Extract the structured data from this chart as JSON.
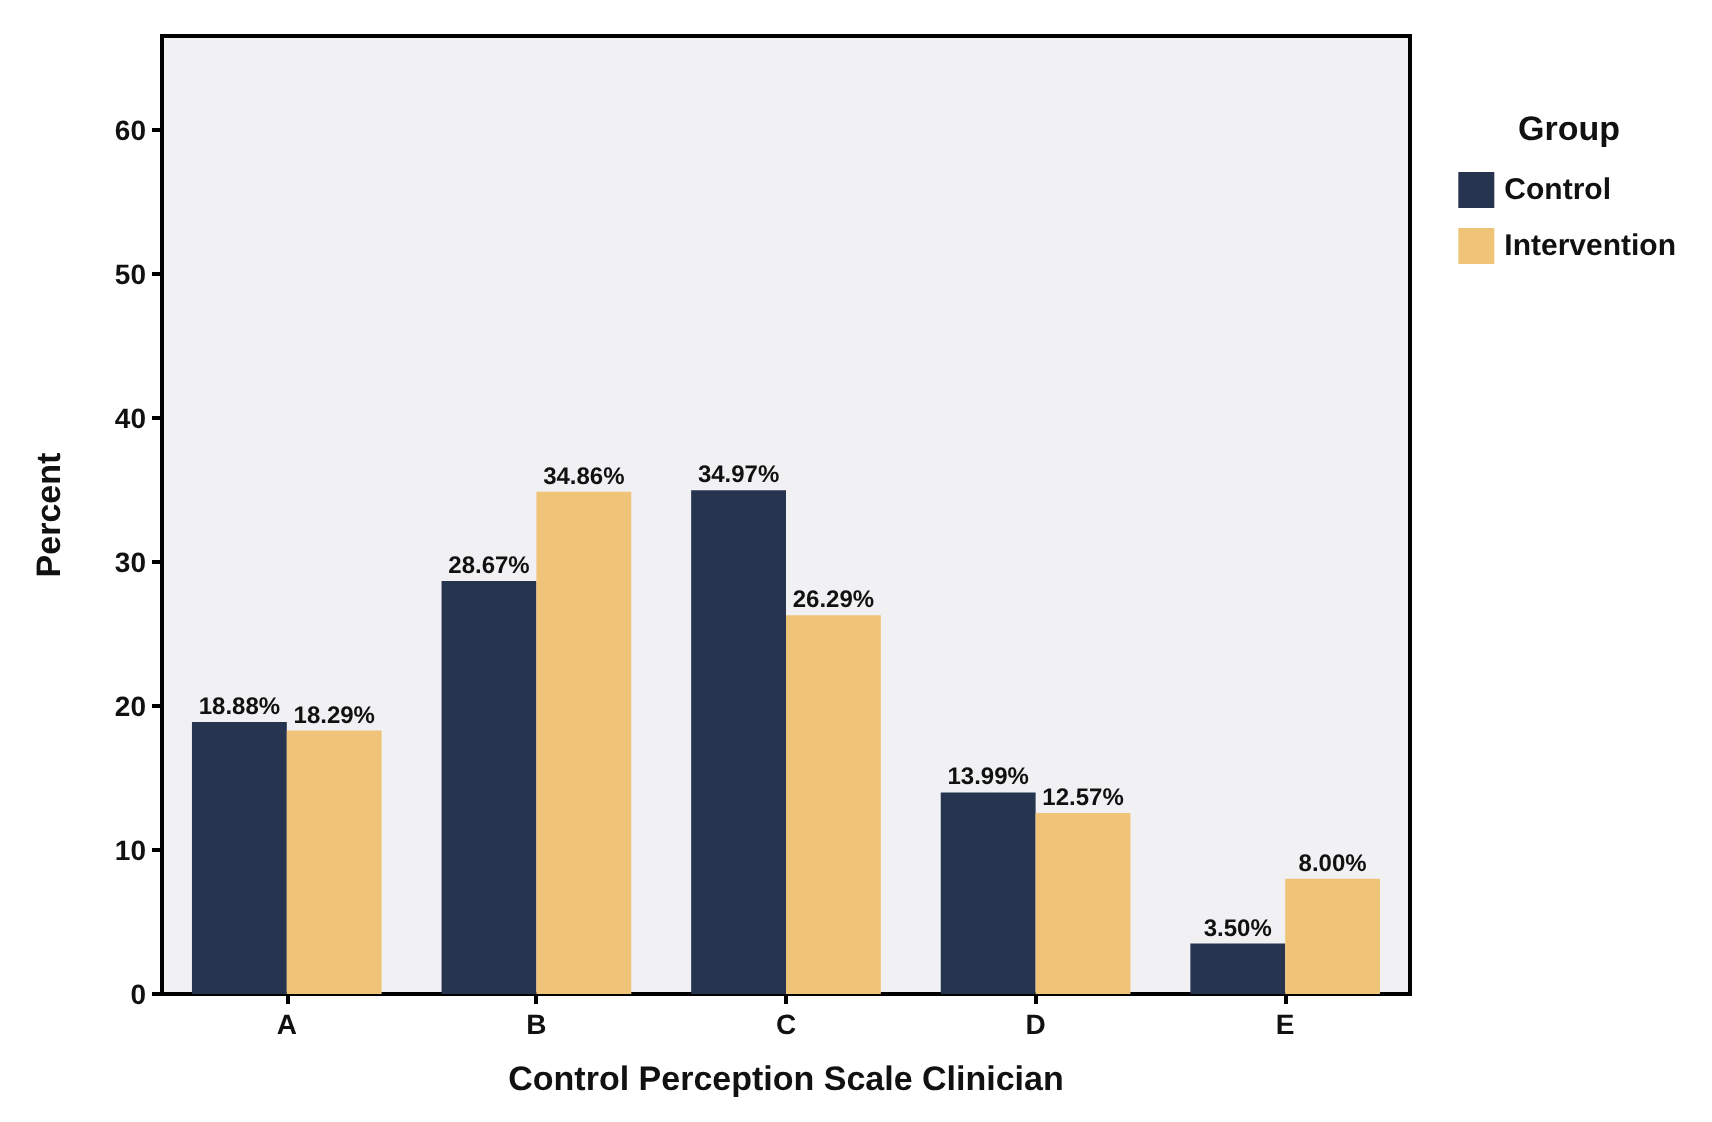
{
  "chart_data": {
    "type": "bar",
    "xlabel": "Control Perception Scale Clinician",
    "ylabel": "Percent",
    "legend_title": "Group",
    "categories": [
      "A",
      "B",
      "C",
      "D",
      "E"
    ],
    "series": [
      {
        "name": "Control",
        "color": "#263450",
        "values": [
          18.88,
          28.67,
          34.97,
          13.99,
          3.5
        ],
        "value_labels": [
          "18.88%",
          "28.67%",
          "34.97%",
          "13.99%",
          "3.50%"
        ]
      },
      {
        "name": "Intervention",
        "color": "#f0c478",
        "values": [
          18.29,
          34.86,
          26.29,
          12.57,
          8.0
        ],
        "value_labels": [
          "18.29%",
          "34.86%",
          "26.29%",
          "12.57%",
          "8.00%"
        ]
      }
    ],
    "ylim": [
      0,
      66.5
    ],
    "yticks": [
      0,
      10,
      20,
      30,
      40,
      50,
      60
    ],
    "grid": false,
    "legend": "top right"
  }
}
